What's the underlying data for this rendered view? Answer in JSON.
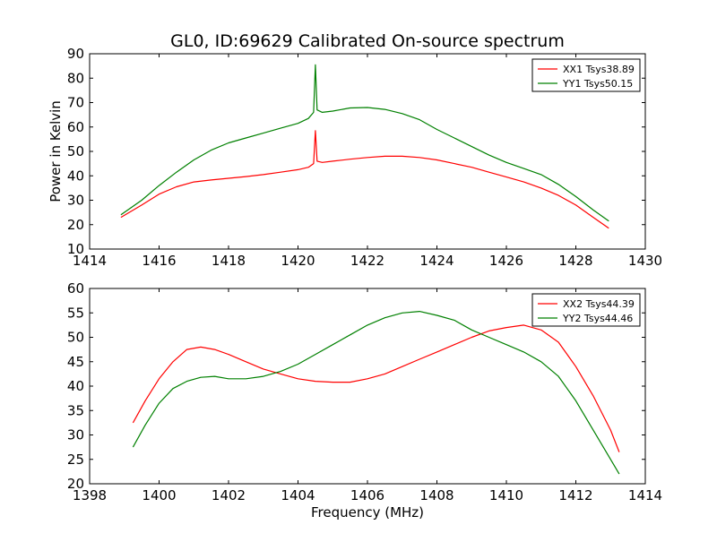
{
  "colors": {
    "red": "#ff0000",
    "green": "#008000",
    "frame": "#000000"
  },
  "chart_data": [
    {
      "type": "line",
      "title": "GL0, ID:69629 Calibrated On-source spectrum",
      "xlabel": "",
      "ylabel": "Power in Kelvin",
      "xlim": [
        1414,
        1430
      ],
      "ylim": [
        10,
        90
      ],
      "xticks": [
        1414,
        1416,
        1418,
        1420,
        1422,
        1424,
        1426,
        1428,
        1430
      ],
      "yticks": [
        10,
        20,
        30,
        40,
        50,
        60,
        70,
        80,
        90
      ],
      "legend_position": "top-right",
      "series": [
        {
          "name": "XX1 Tsys38.89",
          "color": "#ff0000",
          "x": [
            1414.9,
            1415.5,
            1416.0,
            1416.5,
            1417.0,
            1417.5,
            1418.0,
            1418.5,
            1419.0,
            1419.5,
            1420.0,
            1420.3,
            1420.45,
            1420.5,
            1420.55,
            1420.7,
            1421.0,
            1421.5,
            1422.0,
            1422.5,
            1423.0,
            1423.5,
            1424.0,
            1424.5,
            1425.0,
            1425.5,
            1426.0,
            1426.5,
            1427.0,
            1427.5,
            1428.0,
            1428.5,
            1428.95
          ],
          "y": [
            23,
            28,
            32.5,
            35.5,
            37.5,
            38.3,
            39,
            39.7,
            40.5,
            41.5,
            42.5,
            43.5,
            45,
            58.5,
            46,
            45.5,
            46,
            46.8,
            47.5,
            48,
            48,
            47.5,
            46.5,
            45,
            43.5,
            41.5,
            39.5,
            37.5,
            35,
            32,
            28,
            23,
            18.5
          ]
        },
        {
          "name": "YY1 Tsys50.15",
          "color": "#008000",
          "x": [
            1414.9,
            1415.5,
            1416.0,
            1416.5,
            1417.0,
            1417.5,
            1418.0,
            1418.5,
            1419.0,
            1419.5,
            1420.0,
            1420.3,
            1420.45,
            1420.5,
            1420.55,
            1420.7,
            1421.0,
            1421.5,
            1422.0,
            1422.5,
            1423.0,
            1423.5,
            1424.0,
            1424.5,
            1425.0,
            1425.5,
            1426.0,
            1426.5,
            1427.0,
            1427.5,
            1428.0,
            1428.5,
            1428.95
          ],
          "y": [
            24,
            30,
            36,
            41.5,
            46.5,
            50.5,
            53.5,
            55.5,
            57.5,
            59.5,
            61.5,
            63.5,
            66,
            85.5,
            67,
            66,
            66.5,
            67.8,
            68,
            67.2,
            65.5,
            63,
            59,
            55.5,
            52,
            48.5,
            45.5,
            43,
            40.5,
            36.5,
            31.5,
            26,
            21.5
          ]
        }
      ]
    },
    {
      "type": "line",
      "title": "",
      "xlabel": "Frequency (MHz)",
      "ylabel": "",
      "xlim": [
        1398,
        1414
      ],
      "ylim": [
        20,
        60
      ],
      "xticks": [
        1398,
        1400,
        1402,
        1404,
        1406,
        1408,
        1410,
        1412,
        1414
      ],
      "yticks": [
        20,
        25,
        30,
        35,
        40,
        45,
        50,
        55,
        60
      ],
      "legend_position": "top-right",
      "series": [
        {
          "name": "XX2 Tsys44.39",
          "color": "#ff0000",
          "x": [
            1399.25,
            1399.6,
            1400.0,
            1400.4,
            1400.8,
            1401.2,
            1401.6,
            1402.0,
            1402.5,
            1403.0,
            1403.5,
            1404.0,
            1404.5,
            1405.0,
            1405.5,
            1406.0,
            1406.5,
            1407.0,
            1407.5,
            1408.0,
            1408.5,
            1409.0,
            1409.5,
            1410.0,
            1410.5,
            1411.0,
            1411.5,
            1412.0,
            1412.5,
            1413.0,
            1413.25
          ],
          "y": [
            32.5,
            37,
            41.5,
            45,
            47.5,
            48,
            47.5,
            46.5,
            45,
            43.5,
            42.5,
            41.5,
            41,
            40.8,
            40.8,
            41.5,
            42.5,
            44,
            45.5,
            47,
            48.5,
            50,
            51.3,
            52,
            52.5,
            51.5,
            49,
            44,
            38,
            31,
            26.5
          ]
        },
        {
          "name": "YY2 Tsys44.46",
          "color": "#008000",
          "x": [
            1399.25,
            1399.6,
            1400.0,
            1400.4,
            1400.8,
            1401.2,
            1401.6,
            1402.0,
            1402.5,
            1403.0,
            1403.5,
            1404.0,
            1404.5,
            1405.0,
            1405.5,
            1406.0,
            1406.5,
            1407.0,
            1407.5,
            1408.0,
            1408.5,
            1409.0,
            1409.5,
            1410.0,
            1410.5,
            1411.0,
            1411.5,
            1412.0,
            1412.5,
            1413.0,
            1413.25
          ],
          "y": [
            27.5,
            32,
            36.5,
            39.5,
            41,
            41.8,
            42,
            41.5,
            41.5,
            42,
            43,
            44.5,
            46.5,
            48.5,
            50.5,
            52.5,
            54,
            55,
            55.3,
            54.5,
            53.5,
            51.5,
            50,
            48.5,
            47,
            45,
            42,
            37,
            31,
            25,
            22
          ]
        }
      ]
    }
  ]
}
